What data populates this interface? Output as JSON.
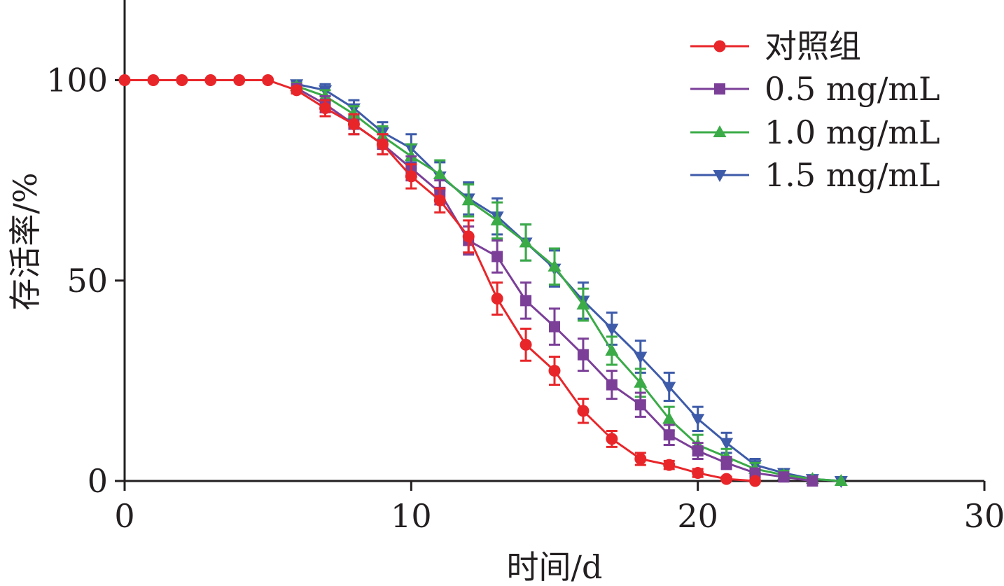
{
  "chart_data": {
    "type": "line",
    "xlabel": "时间/d",
    "ylabel": "存活率/%",
    "xlim": [
      0,
      30
    ],
    "ylim": [
      0,
      120
    ],
    "xticks": [
      0,
      10,
      20,
      30
    ],
    "yticks": [
      0,
      50,
      100
    ],
    "xtick_labels": [
      "0",
      "10",
      "20",
      "30"
    ],
    "ytick_labels": [
      "0",
      "50",
      "100"
    ],
    "grid": false,
    "legend_position": "top-right",
    "series": [
      {
        "name": "对照组",
        "color": "#e8262a",
        "marker": "circle",
        "x": [
          0,
          1,
          2,
          3,
          4,
          5,
          6,
          7,
          8,
          9,
          10,
          11,
          12,
          13,
          14,
          15,
          16,
          17,
          18,
          19,
          20,
          21,
          22
        ],
        "y": [
          100,
          100,
          100,
          100,
          100,
          100,
          97.5,
          93,
          89,
          84,
          76,
          70,
          61,
          45.5,
          34,
          27.5,
          17.5,
          10.5,
          5.5,
          4,
          2,
          0.5,
          0
        ],
        "err": [
          0,
          0,
          0,
          0,
          0,
          0,
          0.8,
          2,
          2.5,
          2.5,
          3,
          3,
          4,
          4,
          4,
          3.5,
          3,
          2,
          1.5,
          1,
          1,
          0.5,
          0
        ]
      },
      {
        "name": "0.5 mg/mL",
        "color": "#7b3f98",
        "marker": "square",
        "x": [
          6,
          7,
          8,
          9,
          10,
          11,
          12,
          13,
          14,
          15,
          16,
          17,
          18,
          19,
          20,
          21,
          22,
          23,
          24
        ],
        "y": [
          98,
          94,
          89,
          84,
          78,
          72,
          60,
          56,
          45,
          38.5,
          31.5,
          24,
          19,
          11.5,
          7.5,
          4.5,
          2,
          1,
          0
        ],
        "err": [
          0.8,
          2,
          2.5,
          2.5,
          3,
          3,
          3.5,
          4,
          4.5,
          4.5,
          4,
          3.5,
          3,
          2.5,
          2,
          1.5,
          1,
          0.5,
          0
        ]
      },
      {
        "name": "1.0 mg/mL",
        "color": "#3aab47",
        "marker": "triangle-up",
        "x": [
          6,
          7,
          8,
          9,
          10,
          11,
          12,
          13,
          14,
          15,
          16,
          17,
          18,
          19,
          20,
          21,
          22,
          23,
          24,
          25
        ],
        "y": [
          98.5,
          96,
          91.5,
          86,
          81,
          76.5,
          70,
          65,
          59.5,
          53.5,
          44,
          32.5,
          24.5,
          15.5,
          9,
          6,
          3,
          1.5,
          0.5,
          0
        ],
        "err": [
          0.8,
          1.5,
          2,
          2.5,
          3,
          3.5,
          4,
          4.5,
          4.5,
          4.5,
          4,
          3.5,
          3.5,
          3,
          2.5,
          2,
          1.5,
          1,
          0.5,
          0
        ]
      },
      {
        "name": "1.5 mg/mL",
        "color": "#3d5ba9",
        "marker": "triangle-down",
        "x": [
          6,
          7,
          8,
          9,
          10,
          11,
          12,
          13,
          14,
          15,
          16,
          17,
          18,
          19,
          20,
          21,
          22,
          23,
          24,
          25
        ],
        "y": [
          99,
          97.5,
          93,
          87,
          83,
          76,
          70.5,
          66,
          59.5,
          53,
          45,
          38,
          31,
          23.5,
          15.5,
          9.5,
          4,
          2,
          0.5,
          0
        ],
        "err": [
          0.8,
          1.5,
          2,
          2.5,
          3.5,
          3.5,
          4,
          4.5,
          4.5,
          4.5,
          4.5,
          4,
          4,
          3.5,
          3,
          2.5,
          1.5,
          1,
          0.5,
          0
        ]
      }
    ]
  }
}
